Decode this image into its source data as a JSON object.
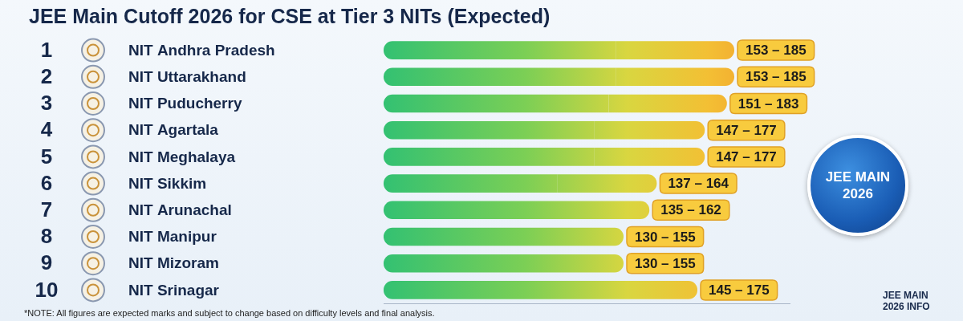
{
  "chart_data": {
    "type": "bar",
    "title": "JEE Main Cutoff 2026 for CSE at Tier 3 NITs (Expected)",
    "orientation": "horizontal",
    "ranks": [
      1,
      2,
      3,
      4,
      5,
      6,
      7,
      8,
      9,
      10
    ],
    "categories": [
      "NIT Andhra Pradesh",
      "NIT Uttarakhand",
      "NIT Puducherry",
      "NIT Agartala",
      "NIT Meghalaya",
      "NIT Sikkim",
      "NIT Arunachal",
      "NIT Manipur",
      "NIT Mizoram",
      "NIT Srinagar"
    ],
    "values": [
      [
        153,
        185
      ],
      [
        153,
        185
      ],
      [
        151,
        183
      ],
      [
        147,
        177
      ],
      [
        147,
        177
      ],
      [
        137,
        164
      ],
      [
        135,
        162
      ],
      [
        130,
        155
      ],
      [
        130,
        155
      ],
      [
        145,
        175
      ]
    ],
    "value_labels": [
      "153 – 185",
      "153 – 185",
      "151 – 183",
      "147 – 177",
      "147 – 177",
      "137 – 164",
      "135 – 162",
      "130 – 155",
      "130 – 155",
      "145 – 175"
    ],
    "data_labels": true,
    "xlim": [
      90,
      200
    ],
    "tick_labels": false,
    "grid": false,
    "note": "*NOTE: All figures are expected marks and subject to change based on difficulty levels and final analysis.",
    "badge": "JEE MAIN 2026",
    "footer": "JEE MAIN 2026 INFO"
  }
}
